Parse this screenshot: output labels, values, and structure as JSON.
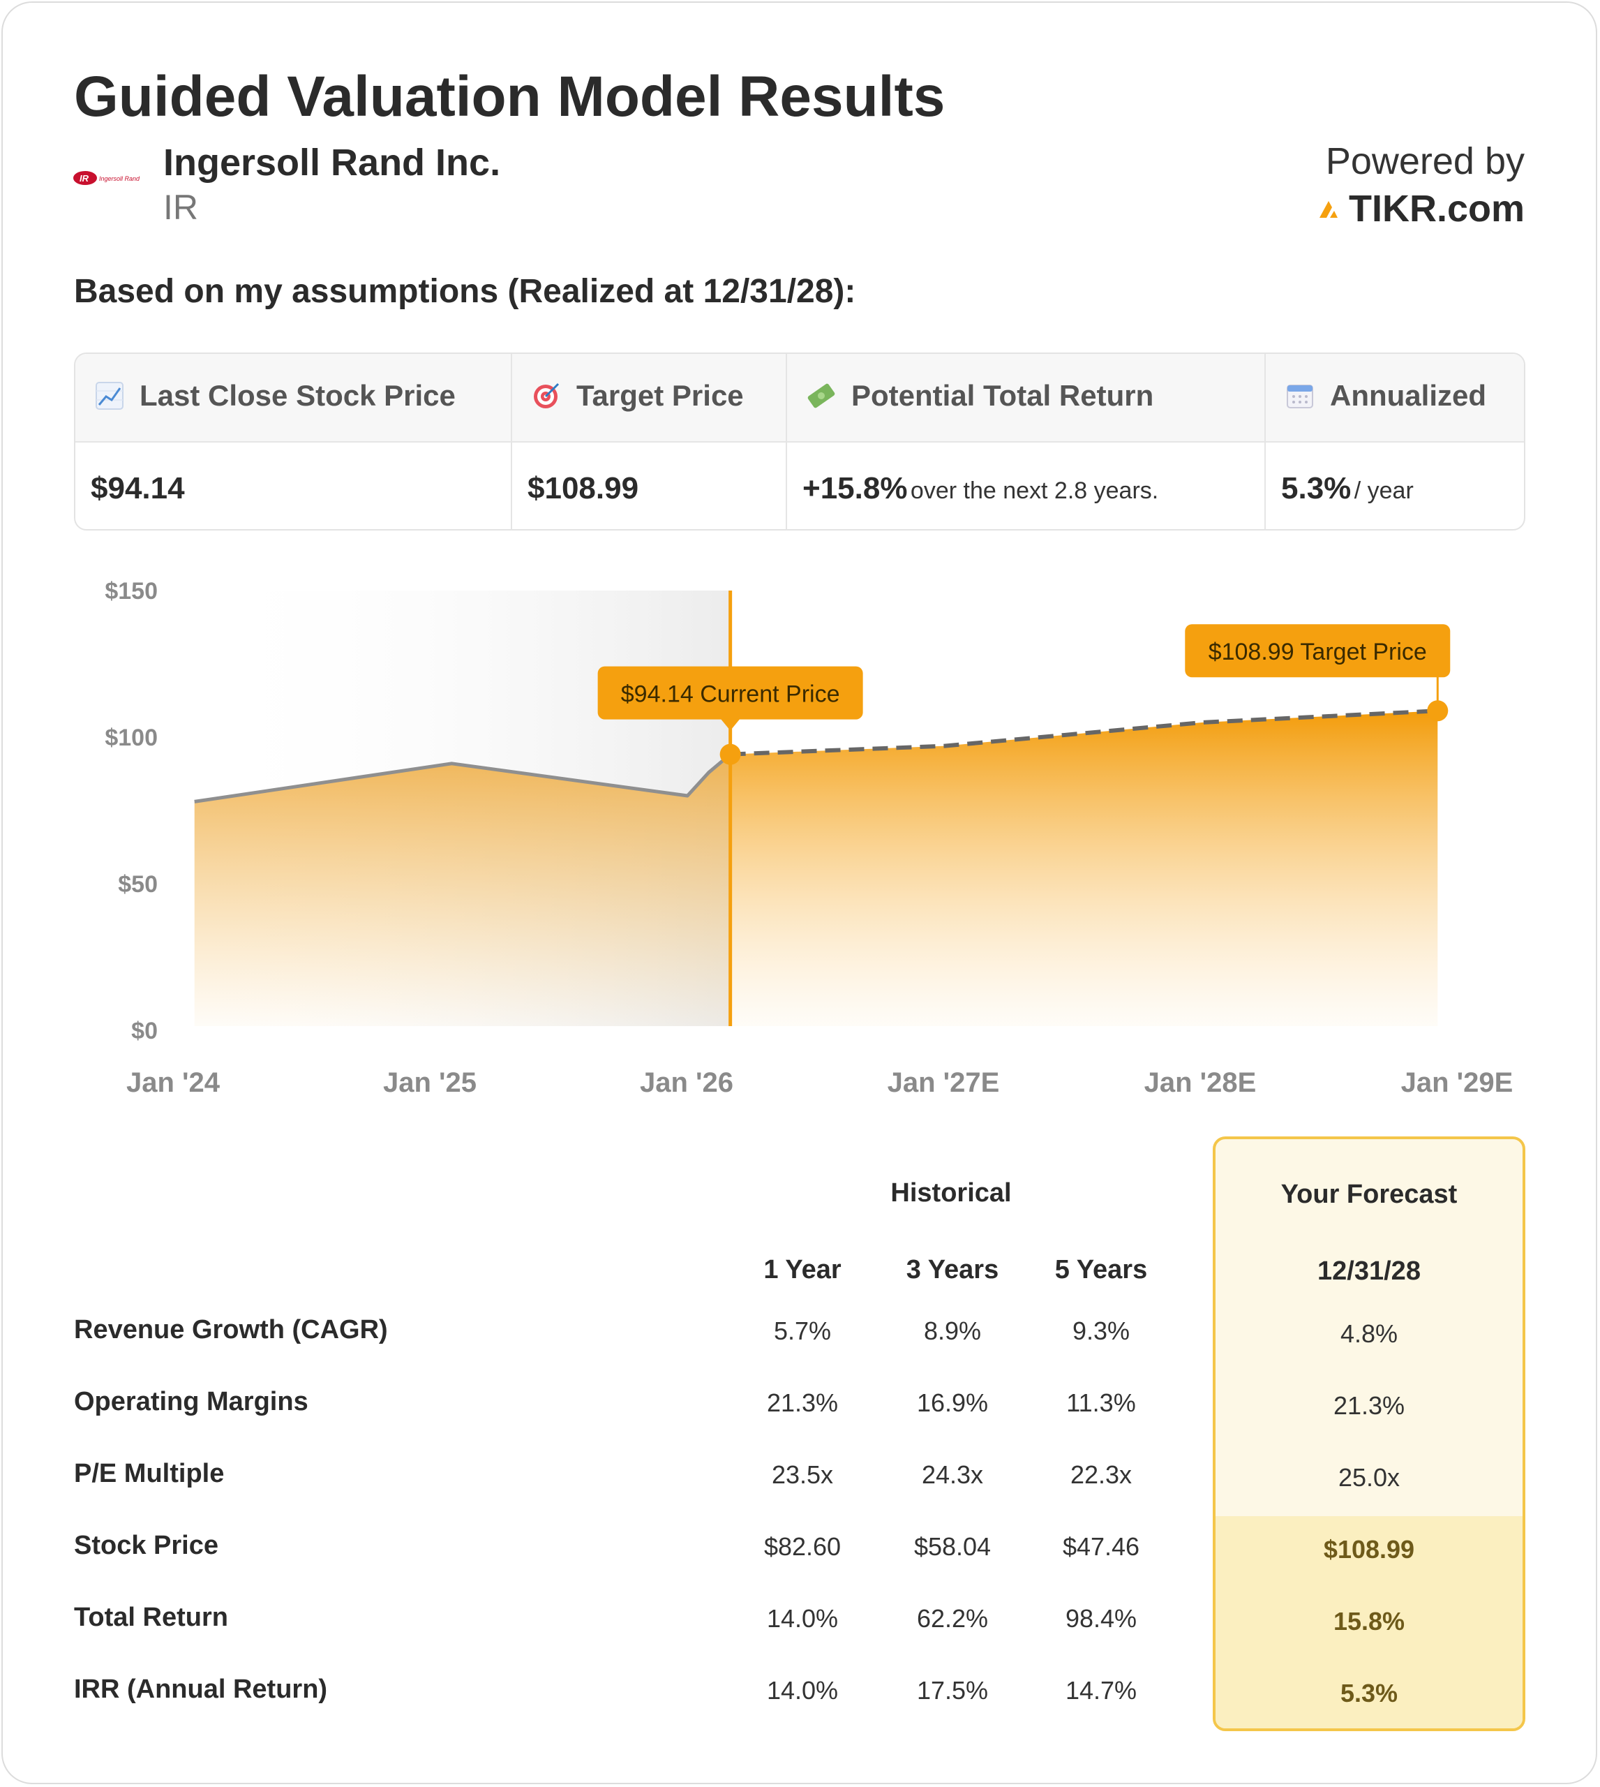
{
  "header": {
    "title": "Guided Valuation Model Results",
    "company_name": "Ingersoll Rand Inc.",
    "ticker": "IR",
    "logo_text": "Ingersoll Rand",
    "powered_by": "Powered by",
    "brand": "TIKR.com"
  },
  "subtitle": "Based on my assumptions (Realized at 12/31/28):",
  "summary": {
    "columns": [
      {
        "icon": "chart-up-icon",
        "label": "Last Close Stock Price",
        "value": "$94.14",
        "note": ""
      },
      {
        "icon": "target-icon",
        "label": "Target Price",
        "value": "$108.99",
        "note": ""
      },
      {
        "icon": "money-icon",
        "label": "Potential Total Return",
        "value": "+15.8%",
        "note": "over the next 2.8 years."
      },
      {
        "icon": "calendar-icon",
        "label": "Annualized",
        "value": "5.3%",
        "note": "/ year"
      }
    ]
  },
  "chart_data": {
    "type": "area",
    "title": "",
    "xlabel": "",
    "ylabel": "",
    "ylim": [
      0,
      150
    ],
    "y_ticks": [
      "$0",
      "$50",
      "$100",
      "$150"
    ],
    "x_ticks": [
      "Jan '24",
      "Jan '25",
      "Jan '26",
      "Jan '27E",
      "Jan '28E",
      "Jan '29E"
    ],
    "historical": {
      "x": [
        "2024-02",
        "2025-02",
        "2026-01",
        "2026-02",
        "2026-03"
      ],
      "y": [
        78,
        91,
        80,
        88,
        94.14
      ]
    },
    "forecast": {
      "x": [
        "2026-03",
        "2027-01",
        "2028-01",
        "2028-12"
      ],
      "y": [
        94.14,
        97,
        105,
        108.99
      ]
    },
    "annotations": [
      {
        "label": "$94.14 Current Price",
        "x": "2026-03",
        "y": 94.14
      },
      {
        "label": "$108.99 Target Price",
        "x": "2028-12",
        "y": 108.99
      }
    ],
    "colors": {
      "accent": "#f5a00f",
      "history_line": "#8f8f8f",
      "forecast_line": "#666666"
    }
  },
  "metrics": {
    "historical_title": "Historical",
    "forecast_title": "Your Forecast",
    "period_headers": [
      "1 Year",
      "3 Years",
      "5 Years"
    ],
    "forecast_date": "12/31/28",
    "rows": [
      {
        "label": "Revenue Growth (CAGR)",
        "values": [
          "5.7%",
          "8.9%",
          "9.3%"
        ],
        "forecast": "4.8%"
      },
      {
        "label": "Operating Margins",
        "values": [
          "21.3%",
          "16.9%",
          "11.3%"
        ],
        "forecast": "21.3%"
      },
      {
        "label": "P/E Multiple",
        "values": [
          "23.5x",
          "24.3x",
          "22.3x"
        ],
        "forecast": "25.0x"
      },
      {
        "label": "Stock Price",
        "values": [
          "$82.60",
          "$58.04",
          "$47.46"
        ],
        "forecast": "$108.99"
      },
      {
        "label": "Total Return",
        "values": [
          "14.0%",
          "62.2%",
          "98.4%"
        ],
        "forecast": "15.8%"
      },
      {
        "label": "IRR (Annual Return)",
        "values": [
          "14.0%",
          "17.5%",
          "14.7%"
        ],
        "forecast": "5.3%"
      }
    ]
  }
}
